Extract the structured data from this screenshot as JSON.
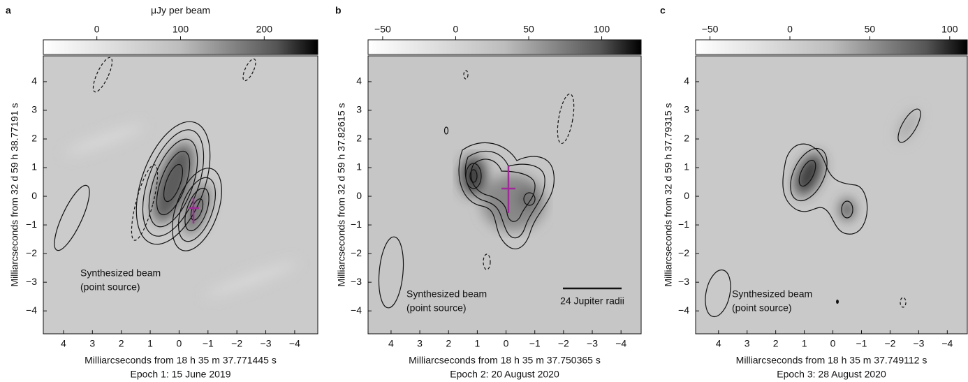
{
  "chart_data": [
    {
      "type": "image",
      "panel": "a",
      "colorbar_label": "μJy per beam",
      "clim": [
        -64,
        264
      ],
      "cticks": [
        0,
        100,
        200
      ],
      "xlim": [
        4.7,
        -4.8
      ],
      "xticks": [
        4,
        3,
        2,
        1,
        0,
        {
          "value": -1,
          "label": "−1"
        },
        {
          "value": -2,
          "label": "−2"
        },
        {
          "value": -3,
          "label": "−3"
        },
        {
          "value": -4,
          "label": "−4"
        }
      ],
      "ylim": [
        -4.8,
        4.9
      ],
      "yticks": [
        {
          "value": -4,
          "label": "−4"
        },
        {
          "value": -3,
          "label": "−3"
        },
        {
          "value": -2,
          "label": "−2"
        },
        {
          "value": -1,
          "label": "−1"
        },
        0,
        1,
        2,
        3,
        4
      ],
      "x_label": "Milliarcseconds from 18 h 35 m 37.771445 s",
      "y_label": "Milliarcseconds from 32 d 59 h 38.77191 s",
      "caption": "Epoch 1: 15 June 2019",
      "annotations": [
        "Synthesized beam",
        "(point source)"
      ]
    },
    {
      "type": "image",
      "panel": "b",
      "clim": [
        -60,
        127
      ],
      "cticks": [
        {
          "value": -50,
          "label": "−50"
        },
        0,
        50,
        100
      ],
      "xlim": [
        4.8,
        -4.7
      ],
      "xticks": [
        4,
        3,
        2,
        1,
        0,
        {
          "value": -1,
          "label": "−1"
        },
        {
          "value": -2,
          "label": "−2"
        },
        {
          "value": -3,
          "label": "−3"
        },
        {
          "value": -4,
          "label": "−4"
        }
      ],
      "ylim": [
        -4.8,
        4.9
      ],
      "yticks": [
        {
          "value": -4,
          "label": "−4"
        },
        {
          "value": -3,
          "label": "−3"
        },
        {
          "value": -2,
          "label": "−2"
        },
        {
          "value": -1,
          "label": "−1"
        },
        0,
        1,
        2,
        3,
        4
      ],
      "x_label": "Milliarcseconds from 18 h 35 m 37.750365 s",
      "y_label": "Milliarcseconds from 32 d 59 h 37.82615 s",
      "caption": "Epoch 2: 20 August 2020",
      "annotations": [
        "Synthesized beam",
        "(point source)",
        "24 Jupiter radii"
      ]
    },
    {
      "type": "image",
      "panel": "c",
      "clim": [
        -59,
        111
      ],
      "cticks": [
        {
          "value": -50,
          "label": "−50"
        },
        0,
        50,
        100
      ],
      "xlim": [
        4.8,
        -4.7
      ],
      "xticks": [
        4,
        3,
        2,
        1,
        0,
        {
          "value": -1,
          "label": "−1"
        },
        {
          "value": -2,
          "label": "−2"
        },
        {
          "value": -3,
          "label": "−3"
        },
        {
          "value": -4,
          "label": "−4"
        }
      ],
      "ylim": [
        -4.8,
        4.9
      ],
      "yticks": [
        {
          "value": -4,
          "label": "−4"
        },
        {
          "value": -3,
          "label": "−3"
        },
        {
          "value": -2,
          "label": "−2"
        },
        {
          "value": -1,
          "label": "−1"
        },
        0,
        1,
        2,
        3,
        4
      ],
      "x_label": "Milliarcseconds from 18 h 35 m 37.749112 s",
      "y_label": "Milliarcseconds from 32 d 59 h 37.79315 s",
      "caption": "Epoch 3: 28 August 2020",
      "annotations": [
        "Synthesized beam",
        "(point source)"
      ]
    }
  ]
}
